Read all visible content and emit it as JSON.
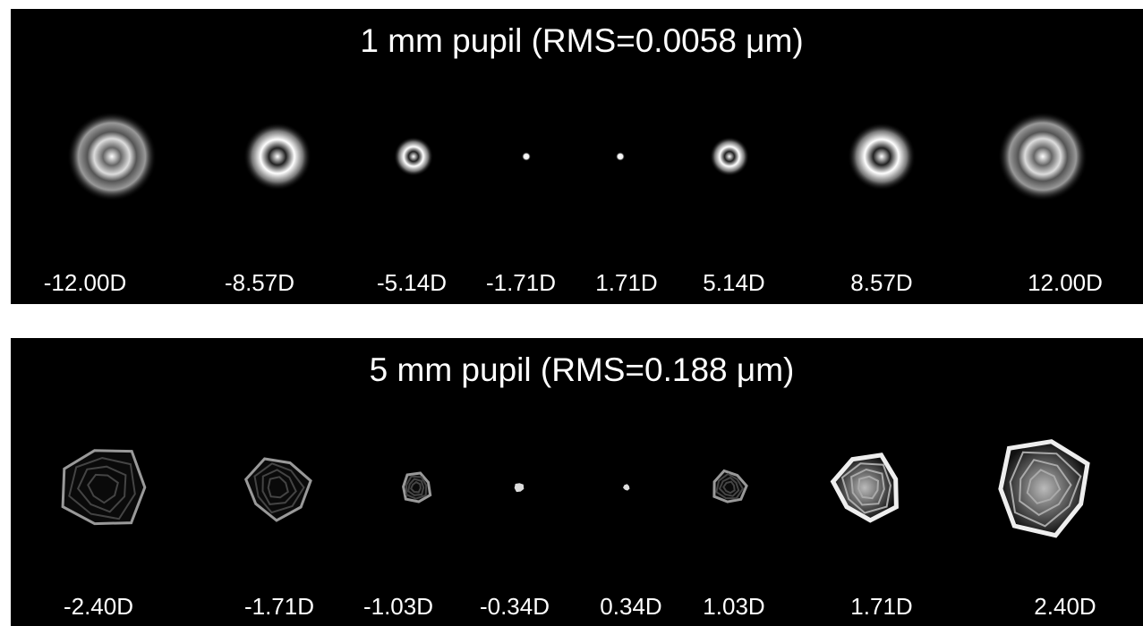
{
  "panels": [
    {
      "title": "1 mm pupil (RMS=0.0058 μm)",
      "labels": [
        "-12.00D",
        "-8.57D",
        "-5.14D",
        "-1.71D",
        "1.71D",
        "5.14D",
        "8.57D",
        "12.00D"
      ]
    },
    {
      "title": "5 mm pupil (RMS=0.188 μm)",
      "labels": [
        "-2.40D",
        "-1.71D",
        "-1.03D",
        "-0.34D",
        "0.34D",
        "1.03D",
        "1.71D",
        "2.40D"
      ]
    }
  ]
}
